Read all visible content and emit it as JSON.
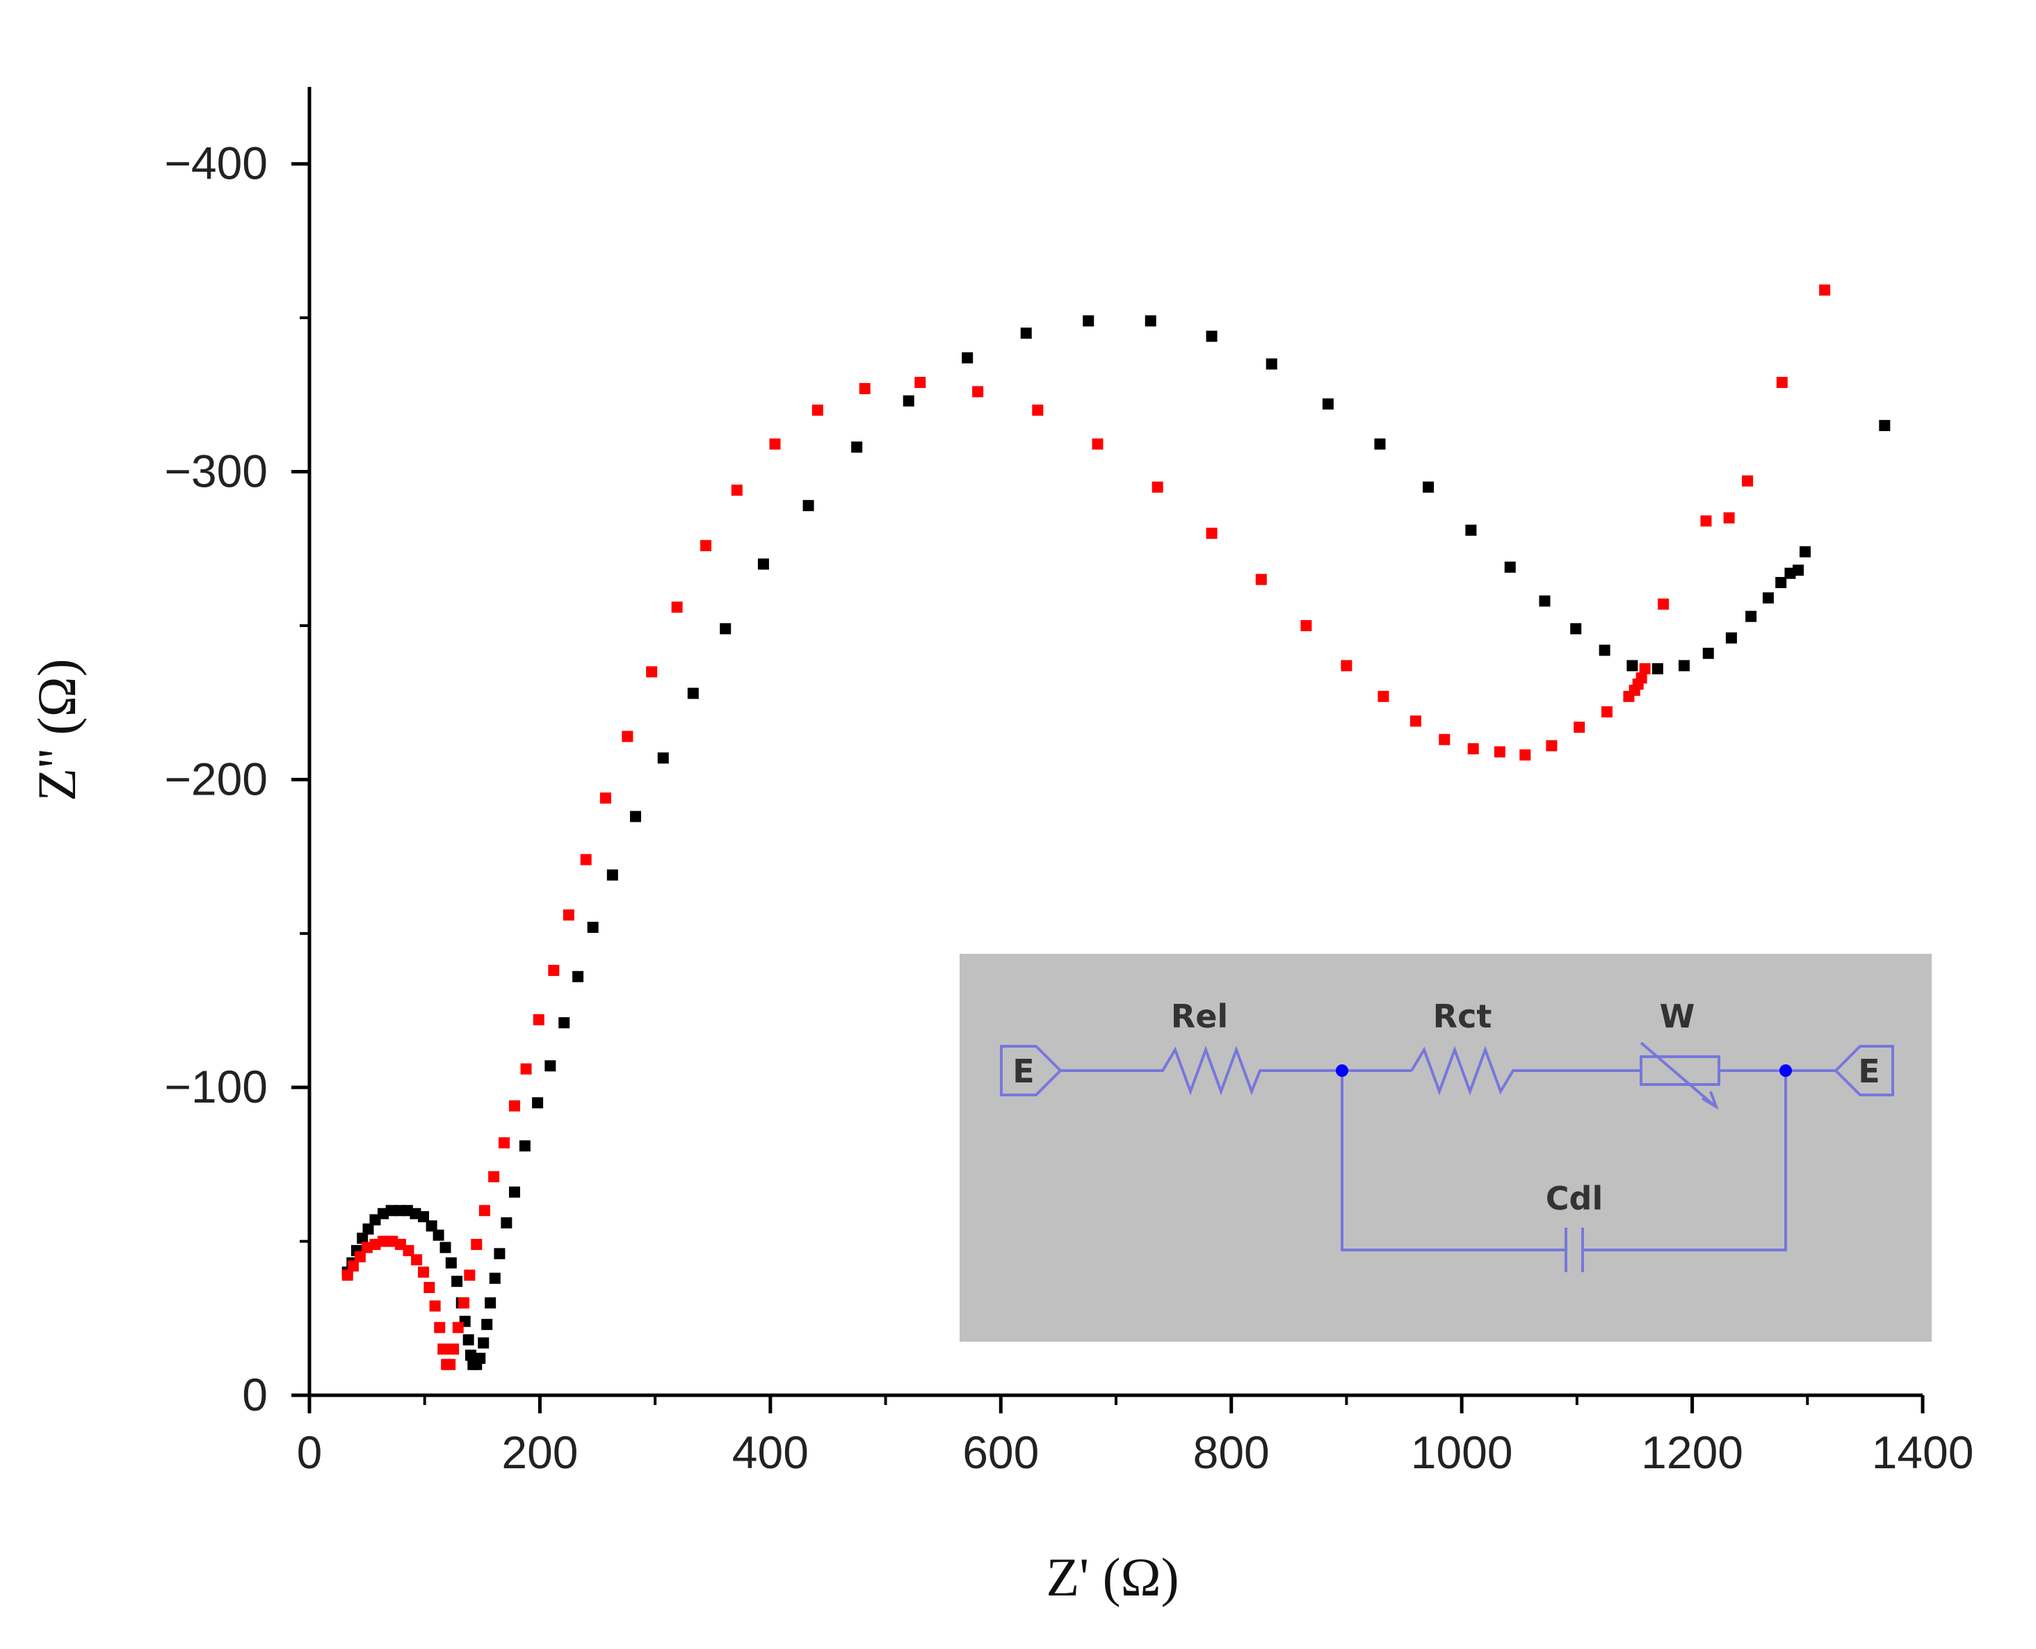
{
  "chart_data": {
    "type": "scatter",
    "xlabel": "Z' (Ω)",
    "ylabel": "Z'' (Ω)",
    "xlim": [
      0,
      1400
    ],
    "ylim": [
      0,
      -425
    ],
    "x_ticks": [
      0,
      200,
      400,
      600,
      800,
      1000,
      1200,
      1400
    ],
    "x_tick_labels": [
      "0",
      "200",
      "400",
      "600",
      "800",
      "1000",
      "1200",
      "1400"
    ],
    "y_ticks": [
      0,
      -100,
      -200,
      -300,
      -400
    ],
    "y_tick_labels": [
      "0",
      "−100",
      "−200",
      "−300",
      "−400"
    ],
    "grid": false,
    "series": [
      {
        "color": "#000000",
        "marker": "square",
        "points": [
          [
            33,
            -40
          ],
          [
            37,
            -43
          ],
          [
            41,
            -47
          ],
          [
            46,
            -51
          ],
          [
            51,
            -54
          ],
          [
            57,
            -57
          ],
          [
            64,
            -59
          ],
          [
            71,
            -60
          ],
          [
            78,
            -60
          ],
          [
            85,
            -60
          ],
          [
            92,
            -59
          ],
          [
            99,
            -58
          ],
          [
            106,
            -55
          ],
          [
            112,
            -52
          ],
          [
            118,
            -48
          ],
          [
            123,
            -43
          ],
          [
            128,
            -37
          ],
          [
            132,
            -30
          ],
          [
            135,
            -24
          ],
          [
            138,
            -18
          ],
          [
            140,
            -13
          ],
          [
            142,
            -10
          ],
          [
            145,
            -10
          ],
          [
            148,
            -12
          ],
          [
            151,
            -17
          ],
          [
            154,
            -23
          ],
          [
            157,
            -30
          ],
          [
            161,
            -38
          ],
          [
            165,
            -46
          ],
          [
            171,
            -56
          ],
          [
            178,
            -66
          ],
          [
            187,
            -81
          ],
          [
            198,
            -95
          ],
          [
            209,
            -107
          ],
          [
            221,
            -121
          ],
          [
            233,
            -136
          ],
          [
            246,
            -152
          ],
          [
            263,
            -169
          ],
          [
            283,
            -188
          ],
          [
            307,
            -207
          ],
          [
            333,
            -228
          ],
          [
            361,
            -249
          ],
          [
            394,
            -270
          ],
          [
            433,
            -289
          ],
          [
            475,
            -308
          ],
          [
            520,
            -323
          ],
          [
            571,
            -337
          ],
          [
            622,
            -345
          ],
          [
            676,
            -349
          ],
          [
            730,
            -349
          ],
          [
            783,
            -344
          ],
          [
            835,
            -335
          ],
          [
            884,
            -322
          ],
          [
            929,
            -309
          ],
          [
            971,
            -295
          ],
          [
            1008,
            -281
          ],
          [
            1042,
            -269
          ],
          [
            1072,
            -258
          ],
          [
            1099,
            -249
          ],
          [
            1124,
            -242
          ],
          [
            1148,
            -237
          ],
          [
            1170,
            -236
          ],
          [
            1193,
            -237
          ],
          [
            1214,
            -241
          ],
          [
            1234,
            -246
          ],
          [
            1251,
            -253
          ],
          [
            1266,
            -259
          ],
          [
            1277,
            -264
          ],
          [
            1285,
            -267
          ],
          [
            1292,
            -268
          ],
          [
            1298,
            -274
          ],
          [
            1367,
            -315
          ]
        ]
      },
      {
        "color": "#ff0000",
        "marker": "square",
        "points": [
          [
            33,
            -39
          ],
          [
            38,
            -42
          ],
          [
            44,
            -45
          ],
          [
            50,
            -48
          ],
          [
            57,
            -49
          ],
          [
            64,
            -50
          ],
          [
            72,
            -50
          ],
          [
            79,
            -49
          ],
          [
            86,
            -47
          ],
          [
            93,
            -44
          ],
          [
            99,
            -40
          ],
          [
            104,
            -35
          ],
          [
            109,
            -29
          ],
          [
            113,
            -22
          ],
          [
            116,
            -15
          ],
          [
            119,
            -10
          ],
          [
            122,
            -10
          ],
          [
            125,
            -15
          ],
          [
            129,
            -22
          ],
          [
            134,
            -30
          ],
          [
            139,
            -39
          ],
          [
            145,
            -49
          ],
          [
            152,
            -60
          ],
          [
            160,
            -71
          ],
          [
            169,
            -82
          ],
          [
            178,
            -94
          ],
          [
            188,
            -106
          ],
          [
            199,
            -122
          ],
          [
            212,
            -138
          ],
          [
            225,
            -156
          ],
          [
            240,
            -174
          ],
          [
            257,
            -194
          ],
          [
            276,
            -214
          ],
          [
            297,
            -235
          ],
          [
            319,
            -256
          ],
          [
            344,
            -276
          ],
          [
            371,
            -294
          ],
          [
            404,
            -309
          ],
          [
            441,
            -320
          ],
          [
            482,
            -327
          ],
          [
            530,
            -329
          ],
          [
            580,
            -326
          ],
          [
            632,
            -320
          ],
          [
            684,
            -309
          ],
          [
            736,
            -295
          ],
          [
            783,
            -280
          ],
          [
            826,
            -265
          ],
          [
            865,
            -250
          ],
          [
            900,
            -237
          ],
          [
            932,
            -227
          ],
          [
            960,
            -219
          ],
          [
            985,
            -213
          ],
          [
            1010,
            -210
          ],
          [
            1033,
            -209
          ],
          [
            1055,
            -208
          ],
          [
            1078,
            -211
          ],
          [
            1102,
            -217
          ],
          [
            1126,
            -222
          ],
          [
            1145,
            -227
          ],
          [
            1150,
            -229
          ],
          [
            1153,
            -231
          ],
          [
            1156,
            -233
          ],
          [
            1159,
            -236
          ],
          [
            1175,
            -257
          ],
          [
            1212,
            -284
          ],
          [
            1232,
            -285
          ],
          [
            1248,
            -297
          ],
          [
            1278,
            -329
          ],
          [
            1315,
            -359
          ]
        ]
      }
    ],
    "inset": {
      "background": "#c0c0c0",
      "line_color": "#7777dd",
      "node_color": "#0000ff",
      "labels": {
        "rel": "Rel",
        "rct": "Rct",
        "w": "W",
        "cdl": "Cdl",
        "terminal_left": "E",
        "terminal_right": "E"
      }
    }
  }
}
